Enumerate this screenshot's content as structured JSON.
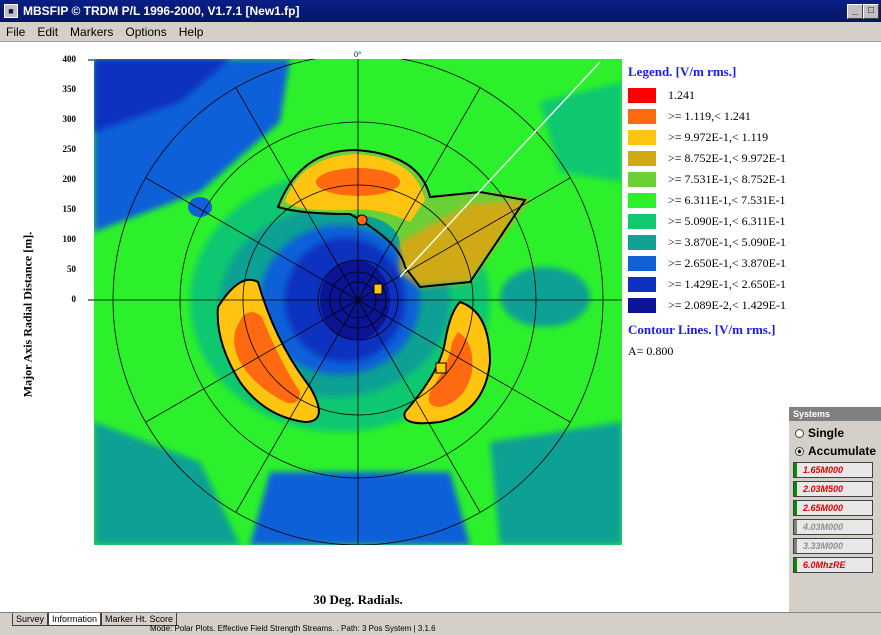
{
  "window": {
    "title": "MBSFIP © TRDM P/L 1996-2000, V1.7.1 [New1.fp]"
  },
  "menu": [
    "File",
    "Edit",
    "Markers",
    "Options",
    "Help"
  ],
  "plot": {
    "ylabel": "Major Axis Radial Distance [m].",
    "xlabel": "30 Deg. Radials.",
    "top_marker": "0°",
    "yticks": [
      "400",
      "350",
      "300",
      "250",
      "200",
      "150",
      "100",
      "50",
      "0"
    ]
  },
  "legend": {
    "title": "Legend. [V/m rms.]",
    "entries": [
      {
        "label": "1.241",
        "color": "#ff0000"
      },
      {
        "label": ">= 1.119,< 1.241",
        "color": "#ff6a10"
      },
      {
        "label": ">= 9.972E-1,< 1.119",
        "color": "#ffc410"
      },
      {
        "label": ">= 8.752E-1,< 9.972E-1",
        "color": "#cfaa12"
      },
      {
        "label": ">= 7.531E-1,< 8.752E-1",
        "color": "#6ad038"
      },
      {
        "label": ">= 6.311E-1,< 7.531E-1",
        "color": "#2cf02c"
      },
      {
        "label": ">= 5.090E-1,< 6.311E-1",
        "color": "#10c870"
      },
      {
        "label": ">= 3.870E-1,< 5.090E-1",
        "color": "#10a094"
      },
      {
        "label": ">= 2.650E-1,< 3.870E-1",
        "color": "#1060d8"
      },
      {
        "label": ">= 1.429E-1,< 2.650E-1",
        "color": "#1030c0"
      },
      {
        "label": ">= 2.089E-2,< 1.429E-1",
        "color": "#0c1496"
      }
    ],
    "contour_title": "Contour Lines. [V/m rms.]",
    "contour_value": "A=   0.800"
  },
  "systems": {
    "title": "Systems",
    "single_label": "Single",
    "accumulate_label": "Accumulate",
    "buttons": [
      "1.65M000",
      "2.03M500",
      "2.65M000",
      "4.03M000",
      "3.33M000",
      "6.0MhzRE"
    ]
  },
  "tabs": [
    "Survey",
    "Information",
    "Marker Ht. Score"
  ],
  "status": {
    "text": "Mode: Polar Plots. Effective Field Strength Streams. . Path: 3 Pos System   | 3.1.6"
  }
}
